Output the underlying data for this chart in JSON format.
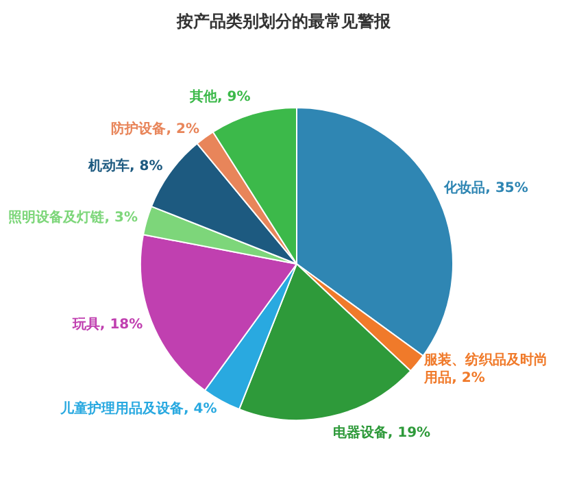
{
  "chart_data": {
    "type": "pie",
    "title": "按产品类别划分的最常见警报",
    "categories": [
      "化妆品",
      "服装、纺织品及时尚用品",
      "电器设备",
      "儿童护理用品及设备",
      "玩具",
      "照明设备及灯链",
      "机动车",
      "防护设备",
      "其他"
    ],
    "values": [
      35,
      2,
      19,
      4,
      18,
      3,
      8,
      2,
      9
    ],
    "value_labels": [
      "35%",
      "2%",
      "19%",
      "4%",
      "18%",
      "3%",
      "8%",
      "2%",
      "9%"
    ],
    "colors": [
      "#2f86b3",
      "#f07a2a",
      "#2e9a3a",
      "#29a9e0",
      "#c040b0",
      "#7dd67a",
      "#1d5a80",
      "#e8855a",
      "#3cb94a"
    ]
  }
}
